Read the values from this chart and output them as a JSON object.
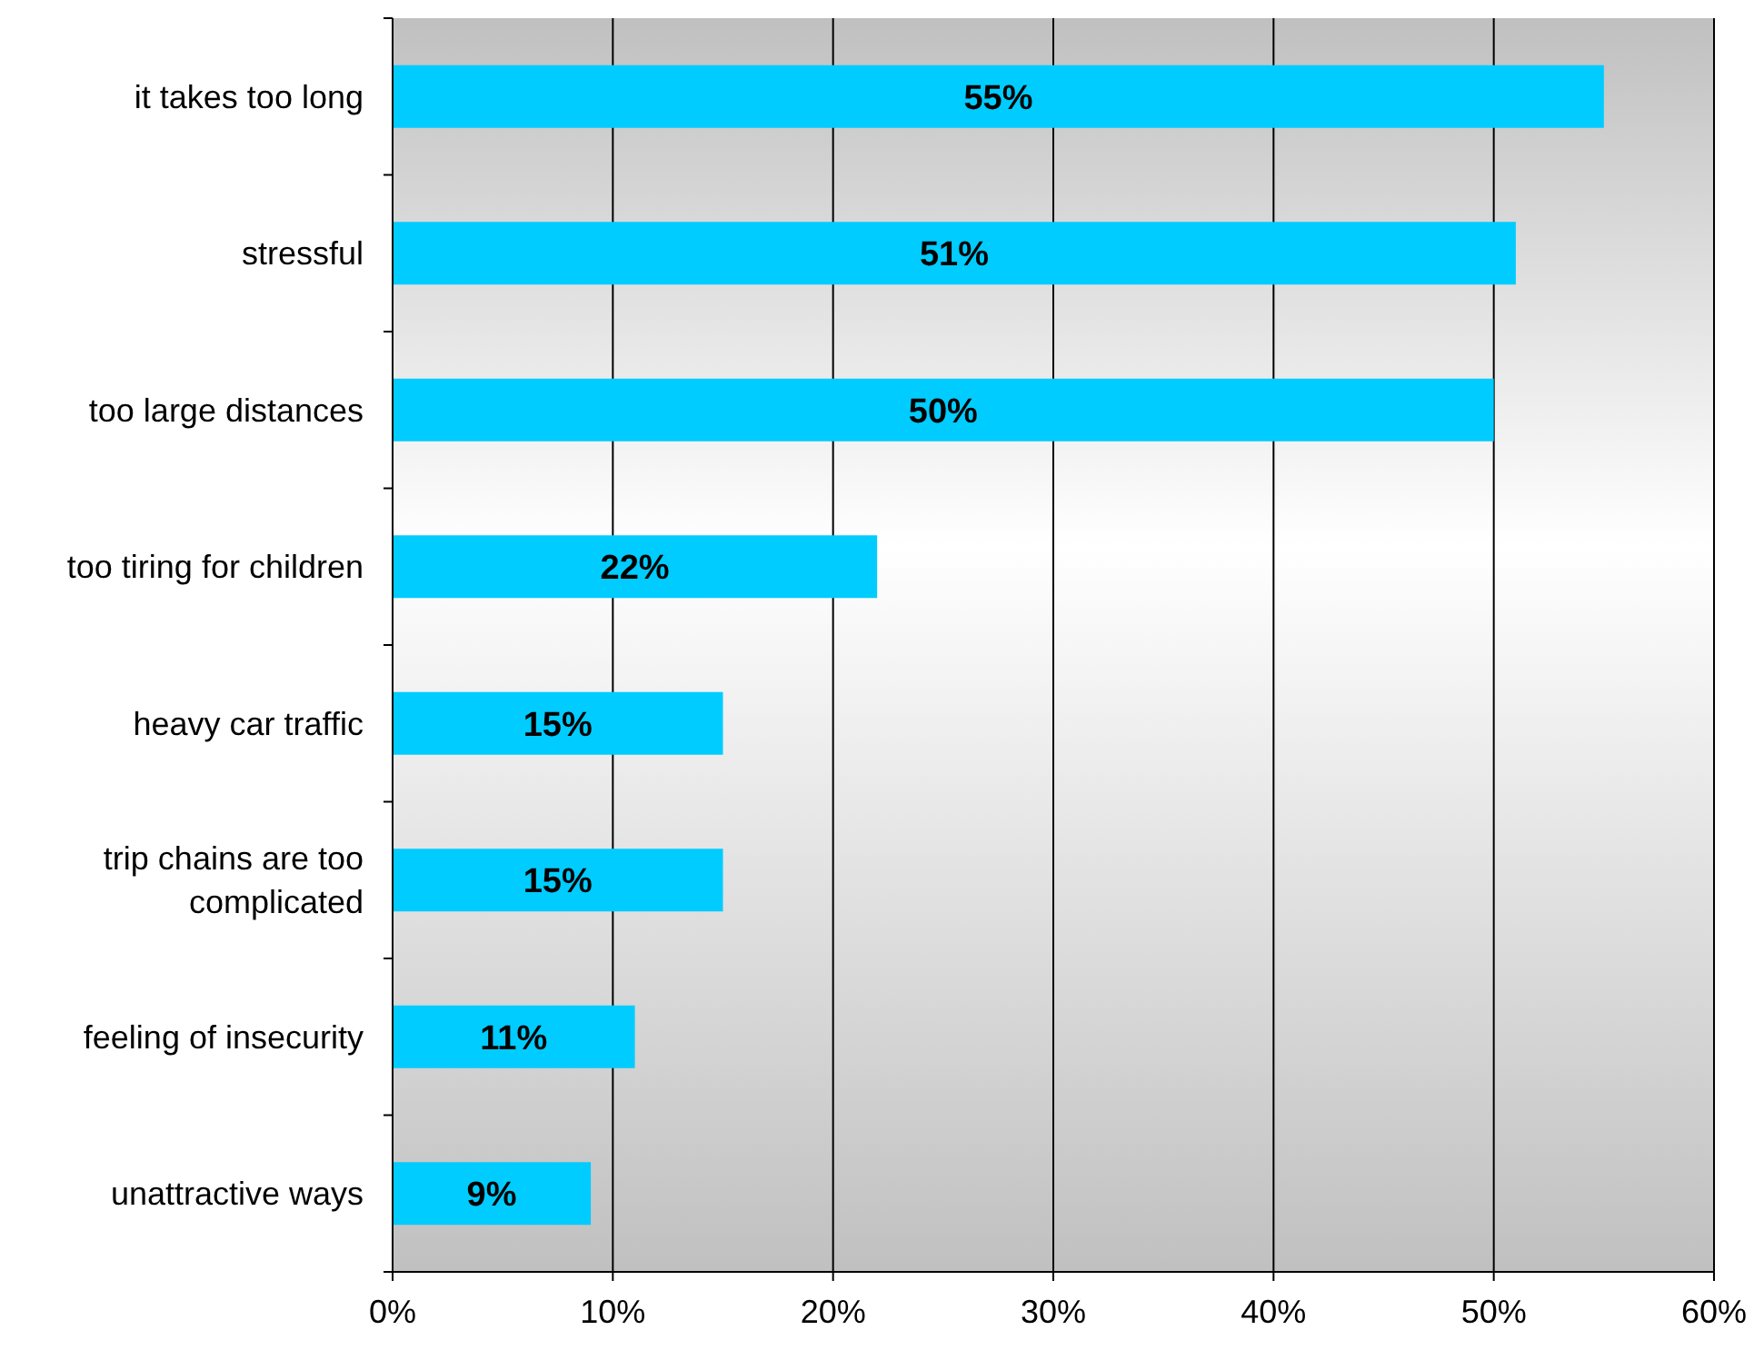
{
  "chart_data": {
    "type": "bar",
    "orientation": "horizontal",
    "categories": [
      "it takes too long",
      "stressful",
      "too large distances",
      "too tiring for children",
      "heavy car traffic",
      "trip chains are too complicated",
      "feeling of insecurity",
      "unattractive ways"
    ],
    "values": [
      55,
      51,
      50,
      22,
      15,
      15,
      11,
      9
    ],
    "value_labels": [
      "55%",
      "51%",
      "50%",
      "22%",
      "15%",
      "15%",
      "11%",
      "9%"
    ],
    "color": "#00ccff",
    "xlim": [
      0,
      60
    ],
    "xticks": [
      {
        "value": 0,
        "label": "0%"
      },
      {
        "value": 10,
        "label": "10%"
      },
      {
        "value": 20,
        "label": "20%"
      },
      {
        "value": 30,
        "label": "30%"
      },
      {
        "value": 40,
        "label": "40%"
      },
      {
        "value": 50,
        "label": "50%"
      },
      {
        "value": 60,
        "label": "60%"
      }
    ],
    "grid": "x"
  }
}
